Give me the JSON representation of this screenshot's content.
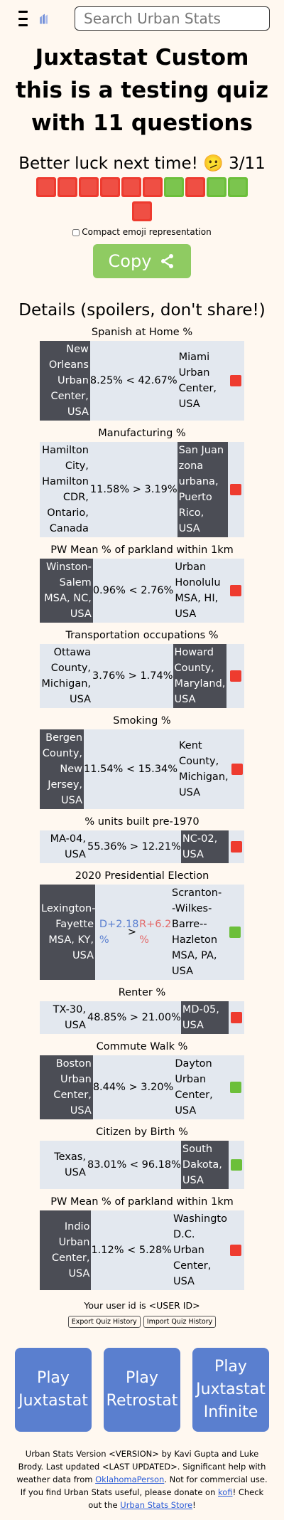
{
  "header": {
    "search_placeholder": "Search Urban Stats"
  },
  "title": "Juxtastat Custom this is a testing quiz with 11 questions",
  "summary": {
    "text": "Better luck next time! 🫤 3/11"
  },
  "emoji_rows": [
    [
      "red",
      "red",
      "red",
      "red",
      "red",
      "red",
      "green",
      "red",
      "green",
      "green"
    ],
    [
      "red"
    ]
  ],
  "compact_label": "Compact emoji representation",
  "copy_label": "Copy",
  "details_heading": "Details (spoilers, don't share!)",
  "questions": [
    {
      "label": "Spanish at Home %",
      "left": "New Orleans Urban Center, USA",
      "mid": "8.25% < 42.67%",
      "right": "Miami Urban Center, USA",
      "dark": "left",
      "result": "red"
    },
    {
      "label": "Manufacturing %",
      "left": "Hamilton City, Hamilton CDR, Ontario, Canada",
      "mid": "11.58% > 3.19%",
      "right": "San Juan zona urbana, Puerto Rico, USA",
      "dark": "right",
      "result": "red"
    },
    {
      "label": "PW Mean % of parkland within 1km",
      "left": "Winston-Salem MSA, NC, USA",
      "mid": "0.96% < 2.76%",
      "right": "Urban Honolulu MSA, HI, USA",
      "dark": "left",
      "result": "red"
    },
    {
      "label": "Transportation occupations %",
      "left": "Ottawa County, Michigan, USA",
      "mid": "3.76% > 1.74%",
      "right": "Howard County, Maryland, USA",
      "dark": "right",
      "result": "red"
    },
    {
      "label": "Smoking %",
      "left": "Bergen County, New Jersey, USA",
      "mid": "11.54% < 15.34%",
      "right": "Kent County, Michigan, USA",
      "dark": "left",
      "result": "red"
    },
    {
      "label": "% units built pre-1970",
      "left": "MA-04, USA",
      "mid": "55.36% > 12.21%",
      "right": "NC-02, USA",
      "dark": "right",
      "result": "red"
    },
    {
      "label": "2020 Presidential Election",
      "left": "Lexington-Fayette MSA, KY, USA",
      "mid_d": "D+2.18 %",
      "mid_op": ">",
      "mid_r": "R+6.22 %",
      "right": "Scranton--Wilkes-Barre--Hazleton MSA, PA, USA",
      "dark": "left",
      "result": "green"
    },
    {
      "label": "Renter %",
      "left": "TX-30, USA",
      "mid": "48.85% > 21.00%",
      "right": "MD-05, USA",
      "dark": "right",
      "result": "red"
    },
    {
      "label": "Commute Walk %",
      "left": "Boston Urban Center, USA",
      "mid": "8.44% > 3.20%",
      "right": "Dayton Urban Center, USA",
      "dark": "left",
      "result": "green"
    },
    {
      "label": "Citizen by Birth %",
      "left": "Texas, USA",
      "mid": "83.01% < 96.18%",
      "right": "South Dakota, USA",
      "dark": "right",
      "result": "green"
    },
    {
      "label": "PW Mean % of parkland within 1km",
      "left": "Indio Urban Center, USA",
      "mid": "1.12% < 5.28%",
      "right": "Washington D.C. Urban Center, USA",
      "dark": "left",
      "result": "red"
    }
  ],
  "user_id_text": "Your user id is <USER ID>",
  "export_label": "Export Quiz History",
  "import_label": "Import Quiz History",
  "play_buttons": [
    "Play Juxtastat",
    "Play Retrostat",
    "Play Juxtastat Infinite"
  ],
  "footer": {
    "t1": "Urban Stats Version <VERSION> by Kavi Gupta and Luke Brody. Last updated <LAST UPDATED>. Significant help with weather data from ",
    "link1": "OklahomaPerson",
    "t2": ". Not for commercial use. If you find Urban Stats useful, please donate on ",
    "link2": "kofi",
    "t3": "! Check out the ",
    "link3": "Urban Stats Store",
    "t4": "!"
  },
  "colors": {
    "background": "#fff8f0",
    "red": "#ee3b2f",
    "green": "#6cbf3a",
    "copy": "#8fcb62",
    "play": "#5a7fcf",
    "dark_cell": "#4b4d55",
    "light_cell": "#e3e8ef"
  }
}
